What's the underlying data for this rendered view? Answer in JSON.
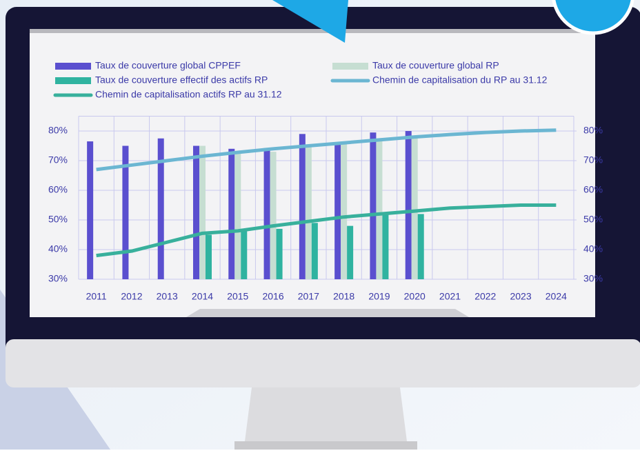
{
  "chart_data": {
    "type": "bar",
    "categories": [
      "2011",
      "2012",
      "2013",
      "2014",
      "2015",
      "2016",
      "2017",
      "2018",
      "2019",
      "2020",
      "2021",
      "2022",
      "2023",
      "2024"
    ],
    "series": [
      {
        "name": "Taux de couverture global CPPEF",
        "type": "bar",
        "color": "#5a4fcf",
        "values": [
          76.5,
          75,
          77.5,
          75,
          74,
          74,
          79,
          76,
          79.5,
          80,
          null,
          null,
          null,
          null
        ]
      },
      {
        "name": "Taux de couverture global RP",
        "type": "bar",
        "color": "#c6ded2",
        "values": [
          null,
          null,
          null,
          75,
          73,
          73,
          75,
          76,
          77,
          78,
          null,
          null,
          null,
          null
        ]
      },
      {
        "name": "Taux de couverture effectif des actifs RP",
        "type": "bar",
        "color": "#2fb3a0",
        "values": [
          null,
          null,
          null,
          45,
          47,
          47,
          49,
          48,
          52,
          52,
          null,
          null,
          null,
          null
        ]
      },
      {
        "name": "Chemin de capitalisation du RP au 31.12",
        "type": "line",
        "axis": "y2",
        "color": "#6bb6d2",
        "values": [
          67,
          68.5,
          70,
          71.5,
          72.8,
          74,
          75,
          76,
          77,
          78,
          78.8,
          79.5,
          80,
          80.3
        ]
      },
      {
        "name": "Chemin de capitalisation actifs RP au 31.12",
        "type": "line",
        "axis": "y2",
        "color": "#38b09c",
        "values": [
          38,
          39.5,
          42.5,
          45.5,
          46.3,
          48,
          49.5,
          51,
          52,
          53,
          54,
          54.5,
          55,
          55
        ]
      }
    ],
    "ylim": [
      30,
      85
    ],
    "yticks": [
      {
        "value": 30,
        "label": "30%"
      },
      {
        "value": 40,
        "label": "40%"
      },
      {
        "value": 50,
        "label": "50%"
      },
      {
        "value": 60,
        "label": "60%"
      },
      {
        "value": 70,
        "label": "70%"
      },
      {
        "value": 80,
        "label": "80%"
      }
    ],
    "y2lim": [
      30,
      85
    ],
    "y2ticks": [
      {
        "value": 30,
        "label": "30%"
      },
      {
        "value": 40,
        "label": "40%"
      },
      {
        "value": 50,
        "label": "50%"
      },
      {
        "value": 60,
        "label": "60%"
      },
      {
        "value": 70,
        "label": "70%"
      },
      {
        "value": 80,
        "label": "80%"
      }
    ],
    "grid": true
  }
}
